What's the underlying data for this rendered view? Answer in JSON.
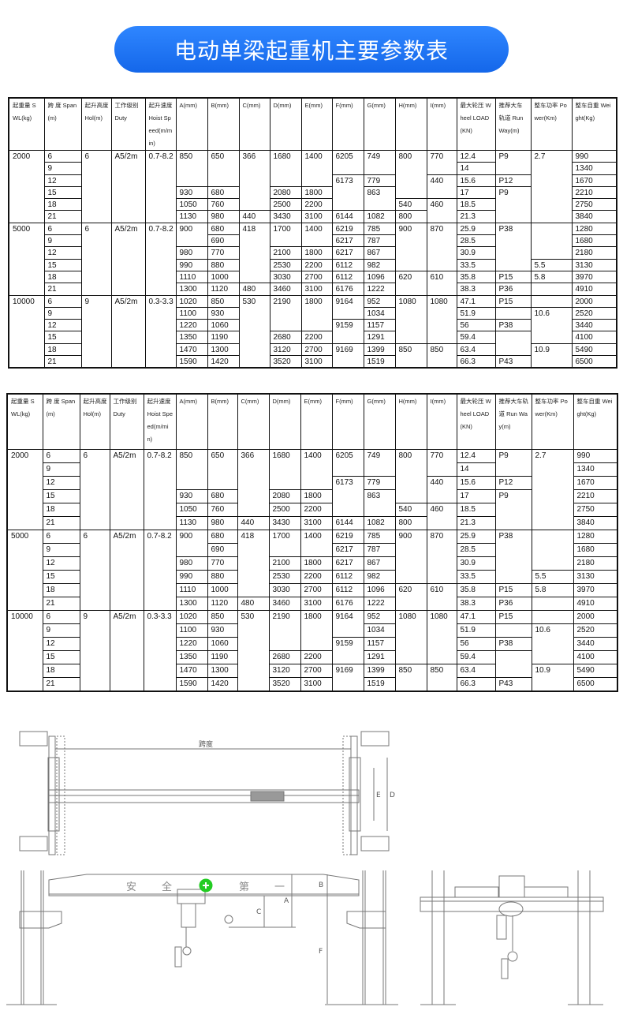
{
  "banner": {
    "title": "电动单梁起重机主要参数表",
    "color": "#1a6ef0"
  },
  "table": {
    "headers": [
      "起重量 SWL(kg)",
      "跨 度 Span(m)",
      "起升高度 Hol(m)",
      "工作级别 Duty",
      "起升速度 Hoist Speed(m/min)",
      "A(mm)",
      "B(mm)",
      "C(mm)",
      "D(mm)",
      "E(mm)",
      "F(mm)",
      "G(mm)",
      "H(mm)",
      "I(mm)",
      "最大轮压 Wheel LOAD(KN)",
      "推荐大车轨道 Run Way(m)",
      "整车功率 Power(Km)",
      "整车自重 Weight(Kg)"
    ],
    "rows": [
      [
        "2000",
        "6",
        "6",
        "A5/2m",
        "0.7-8.2",
        "850",
        "650",
        "366",
        "1680",
        "1400",
        "6205",
        "749",
        "800",
        "770",
        "12.4",
        "P9",
        "2.7",
        "990"
      ],
      [
        null,
        "9",
        null,
        null,
        null,
        null,
        null,
        null,
        null,
        null,
        null,
        null,
        null,
        null,
        "14",
        null,
        null,
        "1340"
      ],
      [
        null,
        "12",
        null,
        null,
        null,
        null,
        null,
        null,
        null,
        null,
        "6173",
        "779",
        null,
        "440",
        "15.6",
        "P12",
        null,
        "1670"
      ],
      [
        null,
        "15",
        null,
        null,
        null,
        "930",
        "680",
        null,
        "2080",
        "1800",
        null,
        "863",
        null,
        null,
        "17",
        "P9",
        null,
        "2210"
      ],
      [
        null,
        "18",
        null,
        null,
        null,
        "1050",
        "760",
        null,
        "2500",
        "2200",
        null,
        null,
        "540",
        "460",
        "18.5",
        null,
        null,
        "2750"
      ],
      [
        null,
        "21",
        null,
        null,
        null,
        "1130",
        "980",
        "440",
        "3430",
        "3100",
        "6144",
        "1082",
        "800",
        null,
        "21.3",
        null,
        null,
        "3840"
      ],
      [
        "5000",
        "6",
        "6",
        "A5/2m",
        "0.7-8.2",
        "900",
        "680",
        "418",
        "1700",
        "1400",
        "6219",
        "785",
        "900",
        "870",
        "25.9",
        "P38",
        "",
        "1280"
      ],
      [
        null,
        "9",
        null,
        null,
        null,
        null,
        "690",
        null,
        null,
        null,
        "6217",
        "787",
        null,
        null,
        "28.5",
        null,
        null,
        "1680"
      ],
      [
        null,
        "12",
        null,
        null,
        null,
        "980",
        "770",
        null,
        "2100",
        "1800",
        "6217",
        "867",
        null,
        null,
        "30.9",
        null,
        null,
        "2180"
      ],
      [
        null,
        "15",
        null,
        null,
        null,
        "990",
        "880",
        null,
        "2530",
        "2200",
        "6112",
        "982",
        null,
        null,
        "33.5",
        null,
        "5.5",
        "3130"
      ],
      [
        null,
        "18",
        null,
        null,
        null,
        "1110",
        "1000",
        null,
        "3030",
        "2700",
        "6112",
        "1096",
        "620",
        "610",
        "35.8",
        "P15",
        "5.8",
        "3970"
      ],
      [
        null,
        "21",
        null,
        null,
        null,
        "1300",
        "1120",
        "480",
        "3460",
        "3100",
        "6176",
        "1222",
        null,
        null,
        "38.3",
        "P36",
        "",
        "4910"
      ],
      [
        "10000",
        "6",
        "9",
        "A5/2m",
        "0.3-3.3",
        "1020",
        "850",
        "530",
        "2190",
        "1800",
        "9164",
        "952",
        "1080",
        "1080",
        "47.1",
        "P15",
        "",
        "2000"
      ],
      [
        null,
        "9",
        null,
        null,
        null,
        "1100",
        "930",
        null,
        null,
        null,
        null,
        "1034",
        null,
        null,
        "51.9",
        "",
        "10.6",
        "2520"
      ],
      [
        null,
        "12",
        null,
        null,
        null,
        "1220",
        "1060",
        null,
        null,
        null,
        "9159",
        "1157",
        null,
        null,
        "56",
        "P38",
        null,
        "3440"
      ],
      [
        null,
        "15",
        null,
        null,
        null,
        "1350",
        "1190",
        null,
        "2680",
        "2200",
        null,
        "1291",
        null,
        null,
        "59.4",
        "",
        null,
        "4100"
      ],
      [
        null,
        "18",
        null,
        null,
        null,
        "1470",
        "1300",
        null,
        "3120",
        "2700",
        "9169",
        "1399",
        "850",
        "850",
        "63.4",
        null,
        "10.9",
        "5490"
      ],
      [
        null,
        "21",
        null,
        null,
        null,
        "1590",
        "1420",
        null,
        "3520",
        "3100",
        null,
        "1519",
        null,
        null,
        "66.3",
        "P43",
        null,
        "6500"
      ]
    ]
  },
  "drawings": {
    "top_view": {
      "span_label": "跨度",
      "dim_e": "E",
      "dim_d": "D"
    },
    "front_view": {
      "girder_text": [
        "安",
        "全",
        "第",
        "一"
      ],
      "dim_a": "A",
      "dim_b": "B",
      "dim_c": "C",
      "dim_f": "F",
      "badge_color": "#22cc22"
    }
  }
}
